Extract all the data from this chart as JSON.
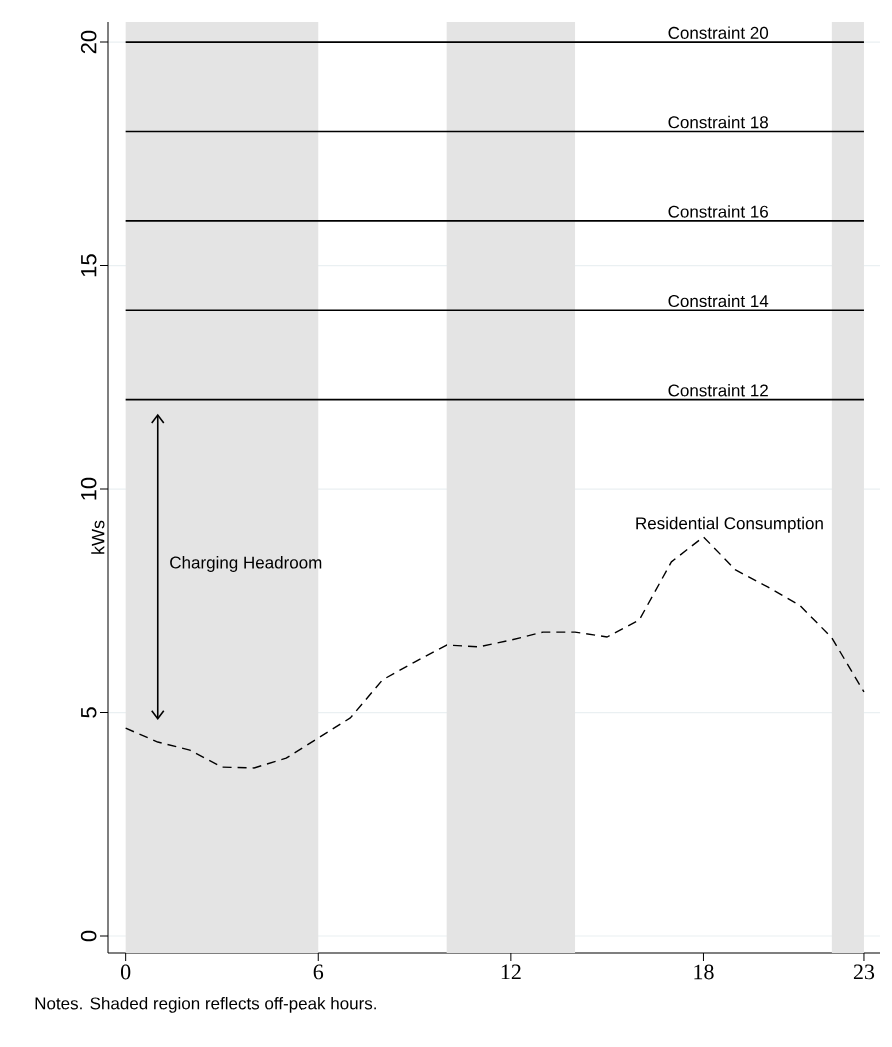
{
  "chart_data": {
    "type": "line",
    "ylabel": "kWs",
    "x": [
      0,
      1,
      2,
      3,
      4,
      5,
      6,
      7,
      8,
      9,
      10,
      11,
      12,
      13,
      14,
      15,
      16,
      17,
      18,
      19,
      20,
      21,
      22,
      23
    ],
    "series": [
      {
        "name": "Residential Consumption",
        "color": "#000000",
        "line_style": "dashed",
        "values": [
          4.65,
          4.34,
          4.16,
          3.78,
          3.76,
          3.98,
          4.43,
          4.88,
          5.73,
          6.13,
          6.51,
          6.47,
          6.62,
          6.8,
          6.8,
          6.69,
          7.07,
          8.37,
          8.93,
          8.19,
          7.81,
          7.4,
          6.67,
          5.46
        ]
      }
    ],
    "xlim": [
      -0.55,
      23.5
    ],
    "ylim": [
      -0.38,
      20.45
    ],
    "xticks": [
      0,
      6,
      12,
      18,
      23
    ],
    "yticks": [
      0,
      5,
      10,
      15,
      20
    ],
    "grid": "y",
    "marker": "none",
    "ref_lines": [
      {
        "axis": "y",
        "value": 20,
        "label": "Constraint 20",
        "color": "#000000"
      },
      {
        "axis": "y",
        "value": 18,
        "label": "Constraint 18",
        "color": "#000000"
      },
      {
        "axis": "y",
        "value": 16,
        "label": "Constraint 16",
        "color": "#000000"
      },
      {
        "axis": "y",
        "value": 14,
        "label": "Constraint 14",
        "color": "#000000"
      },
      {
        "axis": "y",
        "value": 12,
        "label": "Constraint 12",
        "color": "#000000"
      }
    ],
    "bands": [
      {
        "axis": "x",
        "from": 0,
        "to": 6,
        "color": "#e4e4e4"
      },
      {
        "axis": "x",
        "from": 10,
        "to": 14,
        "color": "#e4e4e4"
      },
      {
        "axis": "x",
        "from": 22,
        "to": 23,
        "color": "#e4e4e4"
      }
    ],
    "annotations": [
      "Charging Headroom",
      "Notes. Shaded region reflects off-peak hours."
    ]
  }
}
